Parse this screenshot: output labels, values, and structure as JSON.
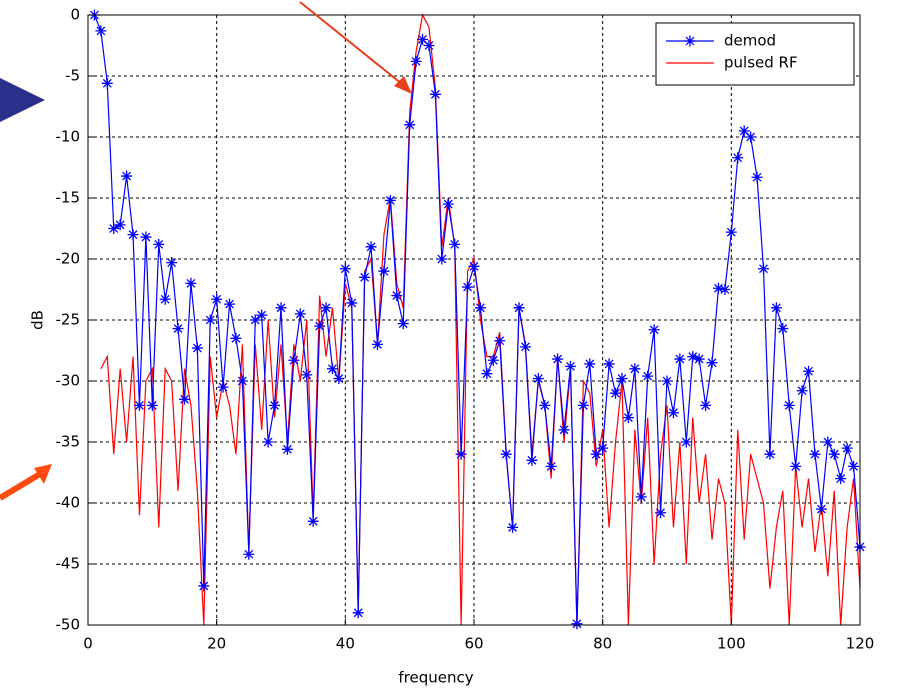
{
  "chart_data": {
    "type": "line",
    "xlabel": "frequency",
    "ylabel": "dB",
    "xlim": [
      0,
      120
    ],
    "ylim": [
      -50,
      0
    ],
    "xticks": [
      0,
      20,
      40,
      60,
      80,
      100,
      120
    ],
    "yticks": [
      0,
      -5,
      -10,
      -15,
      -20,
      -25,
      -30,
      -35,
      -40,
      -45,
      -50
    ],
    "grid": true,
    "legend": "upper right",
    "series": [
      {
        "name": "demod",
        "color": "#0000ff",
        "marker": "*",
        "x": [
          1,
          2,
          3,
          4,
          5,
          6,
          7,
          8,
          9,
          10,
          11,
          12,
          13,
          14,
          15,
          16,
          17,
          18,
          19,
          20,
          21,
          22,
          23,
          24,
          25,
          26,
          27,
          28,
          29,
          30,
          31,
          32,
          33,
          34,
          35,
          36,
          37,
          38,
          39,
          40,
          41,
          42,
          43,
          44,
          45,
          46,
          47,
          48,
          49,
          50,
          51,
          52,
          53,
          54,
          55,
          56,
          57,
          58,
          59,
          60,
          61,
          62,
          63,
          64,
          65,
          66,
          67,
          68,
          69,
          70,
          71,
          72,
          73,
          74,
          75,
          76,
          77,
          78,
          79,
          80,
          81,
          82,
          83,
          84,
          85,
          86,
          87,
          88,
          89,
          90,
          91,
          92,
          93,
          94,
          95,
          96,
          97,
          98,
          99,
          100,
          101,
          102,
          103,
          104,
          105,
          106,
          107,
          108,
          109,
          110,
          111,
          112,
          113,
          114,
          115,
          116,
          117,
          118,
          119,
          120
        ],
        "values": [
          0,
          -1.3,
          -5.6,
          -17.5,
          -17.2,
          -13.2,
          -18,
          -32,
          -18.2,
          -32,
          -18.8,
          -23.3,
          -20.3,
          -25.7,
          -31.5,
          -22,
          -27.3,
          -46.8,
          -25,
          -23.3,
          -30.5,
          -23.7,
          -26.5,
          -30,
          -44.2,
          -25,
          -24.6,
          -35,
          -32,
          -24,
          -35.6,
          -28.3,
          -24.5,
          -29.5,
          -41.5,
          -25.5,
          -24,
          -29,
          -29.8,
          -20.8,
          -23.6,
          -49,
          -21.5,
          -19,
          -27,
          -21,
          -15.2,
          -23,
          -25.3,
          -9,
          -3.8,
          -2,
          -2.5,
          -6.5,
          -20,
          -15.5,
          -18.8,
          -36,
          -22.3,
          -20.6,
          -24,
          -29.4,
          -28.3,
          -26.7,
          -36,
          -42,
          -24,
          -27.2,
          -36.5,
          -29.8,
          -32,
          -37,
          -28.2,
          -34,
          -28.8,
          -49.9,
          -32,
          -28.6,
          -36,
          -35.5,
          -28.6,
          -31,
          -29.8,
          -33,
          -29,
          -39.5,
          -29.6,
          -25.8,
          -40.8,
          -30,
          -32.6,
          -28.2,
          -35,
          -28,
          -28.2,
          -32,
          -28.5,
          -22.4,
          -22.5,
          -17.8,
          -11.7,
          -9.5,
          -10,
          -13.3,
          -20.8,
          -36,
          -24,
          -25.7,
          -32,
          -37,
          -30.8,
          -29.2,
          -36,
          -40.5,
          -35,
          -36,
          -38,
          -35.5,
          -37,
          -43.6
        ]
      },
      {
        "name": "pulsed RF",
        "color": "#ff0000",
        "x": [
          2,
          3,
          4,
          5,
          6,
          7,
          8,
          9,
          10,
          11,
          12,
          13,
          14,
          15,
          16,
          17,
          18,
          19,
          20,
          21,
          22,
          23,
          24,
          25,
          26,
          27,
          28,
          29,
          30,
          31,
          32,
          33,
          34,
          35,
          36,
          37,
          38,
          39,
          40,
          41,
          42,
          43,
          44,
          45,
          46,
          47,
          48,
          49,
          50,
          51,
          52,
          53,
          54,
          55,
          56,
          57,
          58,
          59,
          60,
          61,
          62,
          63,
          64,
          65,
          66,
          67,
          68,
          69,
          70,
          71,
          72,
          73,
          74,
          75,
          76,
          77,
          78,
          79,
          80,
          81,
          82,
          83,
          84,
          85,
          86,
          87,
          88,
          89,
          90,
          91,
          92,
          93,
          94,
          95,
          96,
          97,
          98,
          99,
          100,
          101,
          102,
          103,
          104,
          105,
          106,
          107,
          108,
          109,
          110,
          111,
          112,
          113,
          114,
          115,
          116,
          117,
          118,
          119,
          120
        ],
        "values": [
          -29,
          -28,
          -36,
          -29,
          -35,
          -28,
          -41,
          -30,
          -29,
          -42,
          -29,
          -30,
          -39,
          -29,
          -32,
          -39,
          -50,
          -28,
          -33,
          -30,
          -32,
          -36,
          -27,
          -44,
          -27,
          -34,
          -25,
          -33,
          -27,
          -35,
          -27,
          -30,
          -25,
          -41,
          -23,
          -28,
          -24,
          -30,
          -22,
          -24,
          -49,
          -21,
          -20,
          -27,
          -18,
          -15,
          -22,
          -24,
          -8,
          -3,
          0,
          -1,
          -6,
          -19,
          -15,
          -19,
          -50,
          -21,
          -20,
          -25,
          -28,
          -28,
          -26,
          -36,
          -42,
          -24,
          -27,
          -36,
          -30,
          -32,
          -38,
          -28,
          -35,
          -29,
          -50,
          -30,
          -31,
          -37,
          -34,
          -42,
          -35,
          -30,
          -50,
          -34,
          -40,
          -33,
          -45,
          -36,
          -32,
          -42,
          -35,
          -45,
          -33,
          -40,
          -36,
          -43,
          -38,
          -40,
          -50,
          -34,
          -43,
          -36,
          -38,
          -40,
          -47,
          -42,
          -39,
          -50,
          -37,
          -42,
          -38,
          -44,
          -40,
          -46,
          -39,
          -50,
          -42,
          -38,
          -47
        ]
      }
    ]
  }
}
